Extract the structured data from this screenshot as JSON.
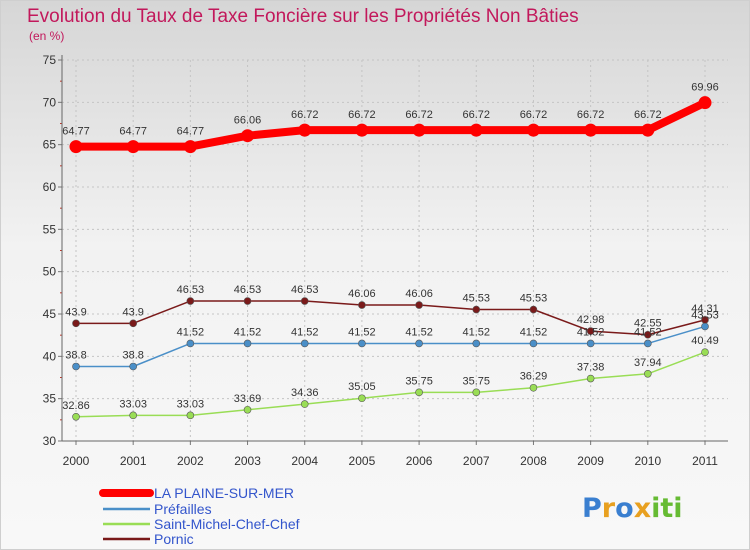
{
  "chart_data": {
    "type": "line",
    "title": "Evolution du Taux de Taxe Foncière sur les Propriétés Non Bâties",
    "subtitle": "(en %)",
    "xlabel": "",
    "ylabel": "",
    "categories": [
      "2000",
      "2001",
      "2002",
      "2003",
      "2004",
      "2005",
      "2006",
      "2007",
      "2008",
      "2009",
      "2010",
      "2011"
    ],
    "ylim": [
      30,
      75
    ],
    "yticks": [
      30,
      35,
      40,
      45,
      50,
      55,
      60,
      65,
      70,
      75
    ],
    "grid": true,
    "legend_position": "bottom-left",
    "series": [
      {
        "name": "LA PLAINE-SUR-MER",
        "color": "#ff0000",
        "values": [
          64.77,
          64.77,
          64.77,
          66.06,
          66.72,
          66.72,
          66.72,
          66.72,
          66.72,
          66.72,
          66.72,
          69.96
        ],
        "labels": [
          "64.77",
          "64.77",
          "64.77",
          "66.06",
          "66.72",
          "66.72",
          "66.72",
          "66.72",
          "66.72",
          "66.72",
          "66.72",
          "69.96"
        ]
      },
      {
        "name": "Préfailles",
        "color": "#4a8fc8",
        "values": [
          38.8,
          38.8,
          41.52,
          41.52,
          41.52,
          41.52,
          41.52,
          41.52,
          41.52,
          41.52,
          41.52,
          43.53
        ],
        "labels": [
          "38.8",
          "38.8",
          "41.52",
          "41.52",
          "41.52",
          "41.52",
          "41.52",
          "41.52",
          "41.52",
          "41.52",
          "41.52",
          "43.53"
        ]
      },
      {
        "name": "Saint-Michel-Chef-Chef",
        "color": "#99dd55",
        "values": [
          32.86,
          33.03,
          33.03,
          33.69,
          34.36,
          35.05,
          35.75,
          35.75,
          36.29,
          37.38,
          37.94,
          40.49
        ],
        "labels": [
          "32.86",
          "33.03",
          "33.03",
          "33.69",
          "34.36",
          "35.05",
          "35.75",
          "35.75",
          "36.29",
          "37.38",
          "37.94",
          "40.49"
        ]
      },
      {
        "name": "Pornic",
        "color": "#7a1a1a",
        "values": [
          43.9,
          43.9,
          46.53,
          46.53,
          46.53,
          46.06,
          46.06,
          45.53,
          45.53,
          42.98,
          42.55,
          44.31
        ],
        "labels": [
          "43.9",
          "43.9",
          "46.53",
          "46.53",
          "46.53",
          "46.06",
          "46.06",
          "45.53",
          "45.53",
          "42.98",
          "42.55",
          "44.31"
        ]
      }
    ]
  },
  "brand": {
    "letters": [
      "P",
      "r",
      "o",
      "x",
      "i",
      "t",
      "i"
    ],
    "colors": [
      "#3a7fd0",
      "#e8a020",
      "#3a7fd0",
      "#e8a020",
      "#66bb33",
      "#66bb33",
      "#66bb33"
    ]
  }
}
